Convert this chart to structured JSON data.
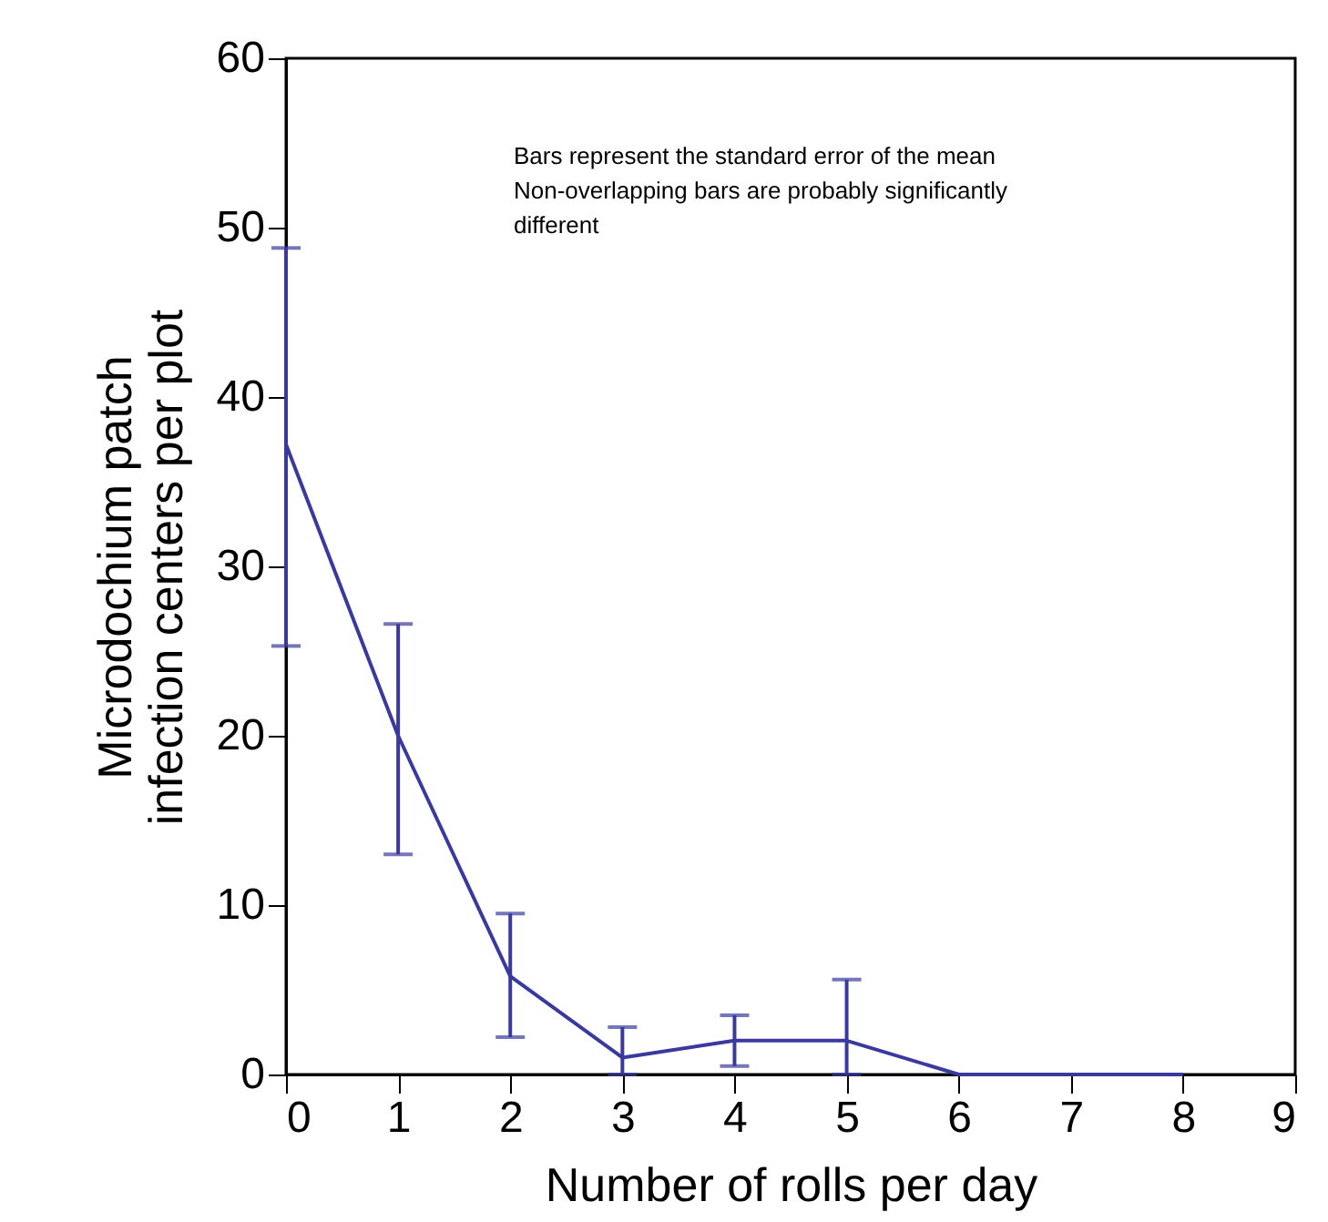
{
  "chart_data": {
    "type": "line",
    "xlabel": "Number of rolls per day",
    "ylabel": "Microdochium patch infection centers per plot",
    "x": [
      0,
      1,
      2,
      3,
      4,
      5,
      6,
      7,
      8
    ],
    "series": [
      {
        "color": "#3a3a9e",
        "values": [
          37.2,
          20.0,
          5.8,
          1.0,
          2.0,
          2.0,
          0,
          0,
          0
        ],
        "errors": [
          [
            25.3,
            48.8
          ],
          [
            13.0,
            26.6
          ],
          [
            2.2,
            9.5
          ],
          [
            0,
            2.8
          ],
          [
            0.5,
            3.5
          ],
          [
            0,
            5.6
          ],
          null,
          null,
          null
        ]
      }
    ],
    "xlim": [
      0,
      9
    ],
    "xticks": [
      0,
      1,
      2,
      3,
      4,
      5,
      6,
      7,
      8,
      9
    ],
    "ylim": [
      0,
      60
    ],
    "yticks": [
      0,
      10,
      20,
      30,
      40,
      50,
      60
    ],
    "annotations": [
      "Bars represent the standard error of the mean",
      "Non-overlapping bars are probably significantly different"
    ],
    "grid": false,
    "marker": "none",
    "line_style": "solid"
  }
}
